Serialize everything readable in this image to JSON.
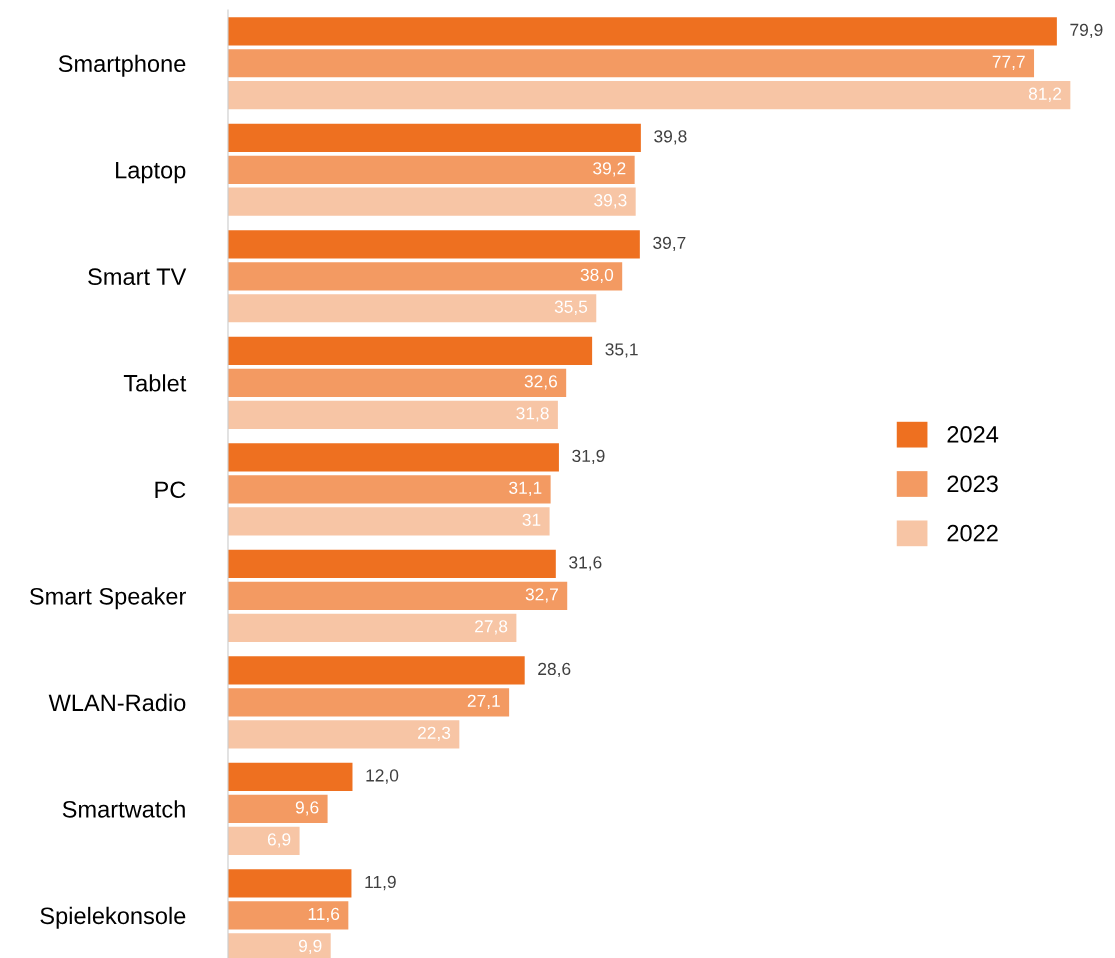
{
  "chart_data": {
    "type": "bar",
    "orientation": "horizontal",
    "categories": [
      "Smartphone",
      "Laptop",
      "Smart TV",
      "Tablet",
      "PC",
      "Smart Speaker",
      "WLAN-Radio",
      "Smartwatch",
      "Spielekonsole"
    ],
    "series": [
      {
        "name": "2024",
        "color": "#ee7020",
        "values": [
          79.9,
          39.8,
          39.7,
          35.1,
          31.9,
          31.6,
          28.6,
          12.0,
          11.9
        ],
        "value_labels": [
          "79,9",
          "39,8",
          "39,7",
          "35,1",
          "31,9",
          "31,6",
          "28,6",
          "12,0",
          "11,9"
        ]
      },
      {
        "name": "2023",
        "color": "#f39a62",
        "values": [
          77.7,
          39.2,
          38.0,
          32.6,
          31.1,
          32.7,
          27.1,
          9.6,
          11.6
        ],
        "value_labels": [
          "77,7",
          "39,2",
          "38,0",
          "32,6",
          "31,1",
          "32,7",
          "27,1",
          "9,6",
          "11,6"
        ]
      },
      {
        "name": "2022",
        "color": "#f7c5a5",
        "values": [
          81.2,
          39.3,
          35.5,
          31.8,
          31,
          27.8,
          22.3,
          6.9,
          9.9
        ],
        "value_labels": [
          "81,2",
          "39,3",
          "35,5",
          "31,8",
          "31",
          "27,8",
          "22,3",
          "6,9",
          "9,9"
        ]
      }
    ],
    "legend": "right",
    "grid": false
  }
}
